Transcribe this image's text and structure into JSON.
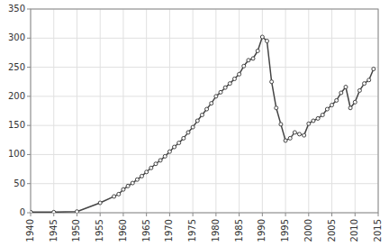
{
  "chart_data": {
    "type": "line",
    "x": [
      1940,
      1945,
      1950,
      1955,
      1958,
      1959,
      1960,
      1961,
      1962,
      1963,
      1964,
      1965,
      1966,
      1967,
      1968,
      1969,
      1970,
      1971,
      1972,
      1973,
      1974,
      1975,
      1976,
      1977,
      1978,
      1979,
      1980,
      1981,
      1982,
      1983,
      1984,
      1985,
      1986,
      1987,
      1988,
      1989,
      1990,
      1991,
      1992,
      1993,
      1994,
      1995,
      1996,
      1997,
      1998,
      1999,
      2000,
      2001,
      2002,
      2003,
      2004,
      2005,
      2006,
      2007,
      2008,
      2009,
      2010,
      2011,
      2012,
      2013,
      2014
    ],
    "values": [
      1,
      1,
      2,
      17,
      28,
      32,
      40,
      46,
      51,
      57,
      63,
      70,
      77,
      84,
      90,
      97,
      105,
      113,
      120,
      128,
      138,
      147,
      158,
      168,
      178,
      188,
      200,
      207,
      215,
      222,
      230,
      238,
      252,
      262,
      265,
      278,
      302,
      295,
      225,
      180,
      152,
      124,
      128,
      138,
      135,
      133,
      153,
      158,
      162,
      168,
      178,
      185,
      193,
      206,
      216,
      180,
      190,
      210,
      222,
      228,
      247
    ],
    "xlim": [
      1940,
      2015
    ],
    "ylim": [
      0,
      350
    ],
    "xticks": [
      1940,
      1945,
      1950,
      1955,
      1960,
      1965,
      1970,
      1975,
      1980,
      1985,
      1990,
      1995,
      2000,
      2005,
      2010,
      2015
    ],
    "yticks": [
      0,
      50,
      100,
      150,
      200,
      250,
      300,
      350
    ],
    "color": "#444444",
    "marker": "circle",
    "grid": true
  }
}
